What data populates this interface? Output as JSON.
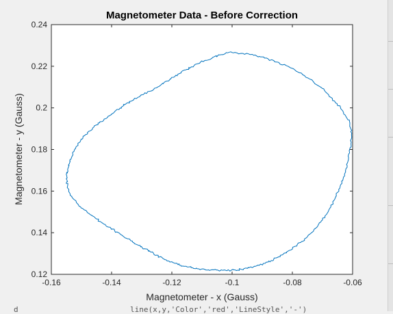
{
  "window": {
    "background": "#f0f0f0",
    "peek_code": "line(x,y,'Color','red','LineStyle','-')",
    "peek_left": "d"
  },
  "chart_data": {
    "type": "line",
    "title": "Magnetometer Data - Before Correction",
    "xlabel": "Magnetometer - x (Gauss)",
    "ylabel": "Magnetometer - y (Gauss)",
    "xlim": [
      -0.16,
      -0.06
    ],
    "ylim": [
      0.12,
      0.24
    ],
    "xticks": [
      -0.16,
      -0.14,
      -0.12,
      -0.1,
      -0.08,
      -0.06
    ],
    "xtick_labels": [
      "-0.16",
      "-0.14",
      "-0.12",
      "-0.1",
      "-0.08",
      "-0.06"
    ],
    "yticks": [
      0.12,
      0.14,
      0.16,
      0.18,
      0.2,
      0.22,
      0.24
    ],
    "ytick_labels": [
      "0.12",
      "0.14",
      "0.16",
      "0.18",
      "0.2",
      "0.22",
      "0.24"
    ],
    "grid": false,
    "line_color": "#0072bd",
    "series": [
      {
        "x": [
          -0.1001,
          -0.097,
          -0.094,
          -0.091,
          -0.088,
          -0.085,
          -0.082,
          -0.079,
          -0.076,
          -0.073,
          -0.07,
          -0.068,
          -0.066,
          -0.064,
          -0.0625,
          -0.061,
          -0.0605,
          -0.0603,
          -0.0605,
          -0.061,
          -0.0615,
          -0.0622,
          -0.063,
          -0.064,
          -0.065,
          -0.066,
          -0.0672,
          -0.0685,
          -0.07,
          -0.0715,
          -0.073,
          -0.075,
          -0.077,
          -0.079,
          -0.081,
          -0.083,
          -0.085,
          -0.087,
          -0.089,
          -0.091,
          -0.093,
          -0.095,
          -0.097,
          -0.099,
          -0.101,
          -0.103,
          -0.105,
          -0.107,
          -0.109,
          -0.111,
          -0.113,
          -0.115,
          -0.117,
          -0.119,
          -0.121,
          -0.123,
          -0.125,
          -0.127,
          -0.129,
          -0.131,
          -0.133,
          -0.135,
          -0.137,
          -0.139,
          -0.141,
          -0.143,
          -0.145,
          -0.147,
          -0.149,
          -0.151,
          -0.1525,
          -0.1538,
          -0.1546,
          -0.1549,
          -0.1549,
          -0.1546,
          -0.154,
          -0.1533,
          -0.1525,
          -0.1515,
          -0.1503,
          -0.149,
          -0.1475,
          -0.1458,
          -0.144,
          -0.1422,
          -0.1405,
          -0.139,
          -0.1372,
          -0.1355,
          -0.1335,
          -0.1315,
          -0.1295,
          -0.1275,
          -0.1255,
          -0.1235,
          -0.1215,
          -0.1195,
          -0.1175,
          -0.1155,
          -0.1135,
          -0.1115,
          -0.109,
          -0.1065,
          -0.1041,
          -0.1021
        ],
        "y": [
          0.2266,
          0.2262,
          0.2256,
          0.2247,
          0.2235,
          0.222,
          0.2203,
          0.218,
          0.2155,
          0.2125,
          0.2093,
          0.2064,
          0.2033,
          0.2001,
          0.1966,
          0.1932,
          0.1896,
          0.186,
          0.1822,
          0.1784,
          0.1746,
          0.1708,
          0.1668,
          0.163,
          0.1594,
          0.1559,
          0.1524,
          0.1492,
          0.1461,
          0.1433,
          0.1407,
          0.1381,
          0.1357,
          0.1335,
          0.1315,
          0.1297,
          0.1281,
          0.1266,
          0.1253,
          0.1243,
          0.1235,
          0.1228,
          0.1224,
          0.1221,
          0.1219,
          0.1219,
          0.122,
          0.1221,
          0.1223,
          0.1226,
          0.1231,
          0.1236,
          0.1243,
          0.1253,
          0.1264,
          0.1277,
          0.1292,
          0.1307,
          0.1323,
          0.1339,
          0.1355,
          0.1373,
          0.1391,
          0.1409,
          0.1427,
          0.1446,
          0.1466,
          0.1486,
          0.1509,
          0.1534,
          0.156,
          0.1587,
          0.1615,
          0.1644,
          0.1674,
          0.1703,
          0.1733,
          0.1762,
          0.179,
          0.1817,
          0.1842,
          0.1866,
          0.1888,
          0.1909,
          0.1928,
          0.1947,
          0.1964,
          0.1982,
          0.1999,
          0.2016,
          0.2032,
          0.2048,
          0.2064,
          0.2079,
          0.2095,
          0.2112,
          0.2129,
          0.2147,
          0.2165,
          0.2182,
          0.2197,
          0.2212,
          0.2228,
          0.2242,
          0.2254,
          0.2263
        ]
      }
    ]
  }
}
